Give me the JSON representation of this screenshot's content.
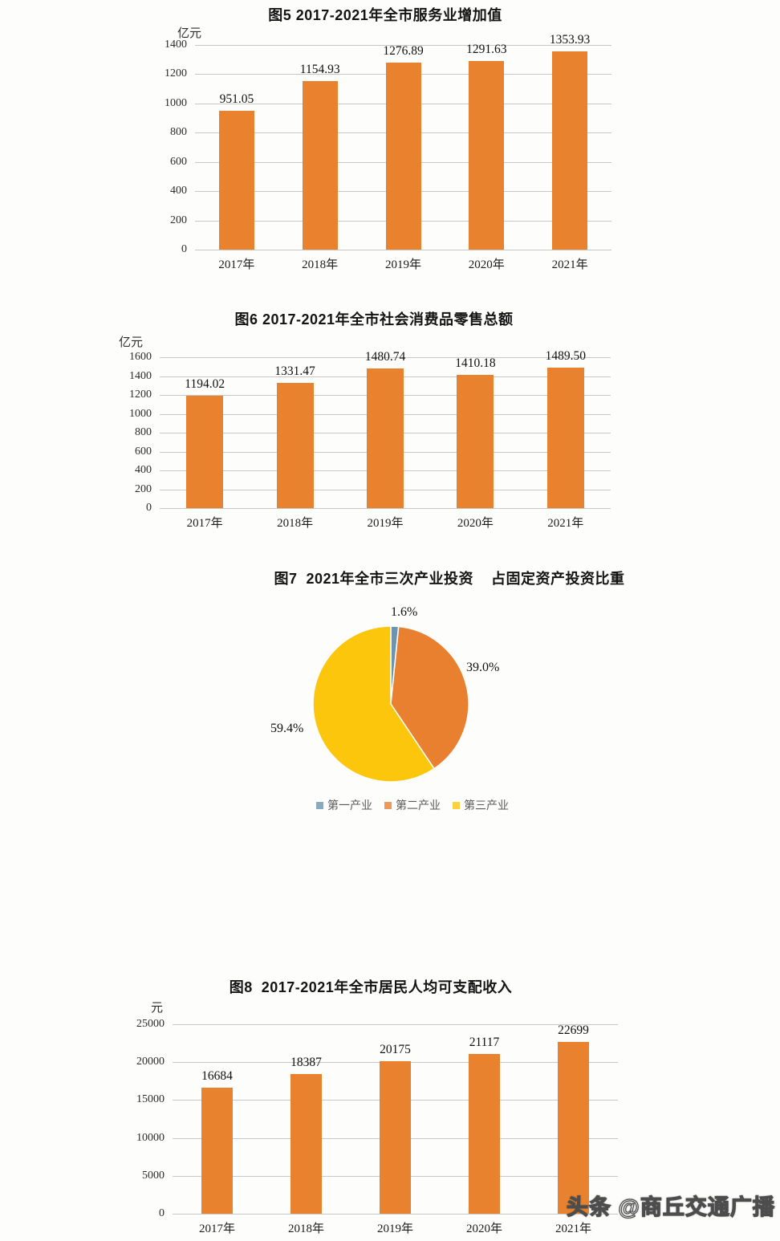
{
  "page": {
    "watermark": "头条 @商丘交通广播"
  },
  "chart_data": [
    {
      "type": "bar",
      "title": "图5 2017-2021年全市服务业增加值",
      "unit": "亿元",
      "categories": [
        "2017年",
        "2018年",
        "2019年",
        "2020年",
        "2021年"
      ],
      "values": [
        951.05,
        1154.93,
        1276.89,
        1291.63,
        1353.93
      ],
      "value_labels": [
        "951.05",
        "1154.93",
        "1276.89",
        "1291.63",
        "1353.93"
      ],
      "ylim": [
        0,
        1400
      ],
      "yticks": [
        "1400",
        "1200",
        "1000",
        "800",
        "600",
        "400",
        "200",
        "0"
      ],
      "bar_color": "#E8822E",
      "grid": true,
      "legend_position": "none"
    },
    {
      "type": "bar",
      "title": "图6 2017-2021年全市社会消费品零售总额",
      "unit": "亿元",
      "categories": [
        "2017年",
        "2018年",
        "2019年",
        "2020年",
        "2021年"
      ],
      "values": [
        1194.02,
        1331.47,
        1480.74,
        1410.18,
        1489.5
      ],
      "value_labels": [
        "1194.02",
        "1331.47",
        "1480.74",
        "1410.18",
        "1489.50"
      ],
      "ylim": [
        0,
        1600
      ],
      "yticks": [
        "1600",
        "1400",
        "1200",
        "1000",
        "800",
        "600",
        "400",
        "200",
        "0"
      ],
      "bar_color": "#E8822E",
      "grid": true,
      "legend_position": "none"
    },
    {
      "type": "pie",
      "title": "图7  2021年全市三次产业投资    占固定资产投资比重",
      "slices": [
        {
          "name": "第一产业",
          "value": 1.6,
          "label": "1.6%",
          "color": "#6C93AF"
        },
        {
          "name": "第二产业",
          "value": 39.0,
          "label": "39.0%",
          "color": "#E8802F"
        },
        {
          "name": "第三产业",
          "value": 59.4,
          "label": "59.4%",
          "color": "#FCC60D"
        }
      ],
      "start_angle_deg": 0,
      "direction": "clockwise",
      "legend_position": "bottom"
    },
    {
      "type": "bar",
      "title": "图8  2017-2021年全市居民人均可支配收入",
      "unit": "元",
      "categories": [
        "2017年",
        "2018年",
        "2019年",
        "2020年",
        "2021年"
      ],
      "values": [
        16684,
        18387,
        20175,
        21117,
        22699
      ],
      "value_labels": [
        "16684",
        "18387",
        "20175",
        "21117",
        "22699"
      ],
      "ylim": [
        0,
        25000
      ],
      "yticks": [
        "25000",
        "20000",
        "15000",
        "10000",
        "5000",
        "0"
      ],
      "bar_color": "#E8822E",
      "grid": true,
      "legend_position": "none"
    }
  ]
}
